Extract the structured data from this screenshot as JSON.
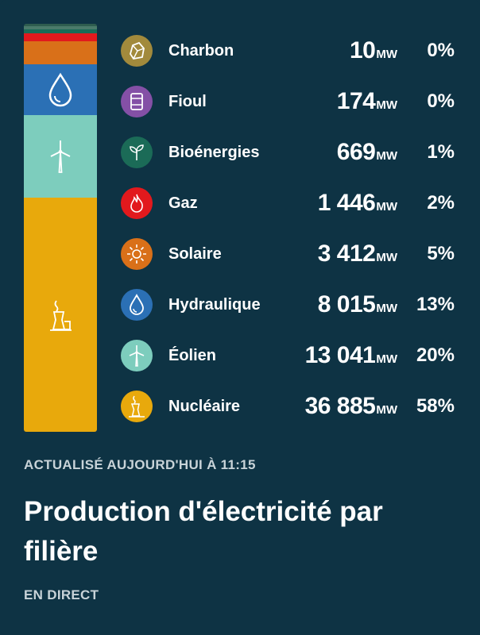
{
  "sources": [
    {
      "name": "Charbon",
      "value": "10",
      "unit": "MW",
      "pct": "0%",
      "share": 0.0002,
      "color": "#a28a3c",
      "icon": "coal-icon"
    },
    {
      "name": "Fioul",
      "value": "174",
      "unit": "MW",
      "pct": "0%",
      "share": 0.003,
      "color": "#8450a6",
      "icon": "oil-barrel-icon"
    },
    {
      "name": "Bioénergies",
      "value": "669",
      "unit": "MW",
      "pct": "1%",
      "share": 0.0105,
      "color": "#1b6b57",
      "icon": "sprout-icon"
    },
    {
      "name": "Gaz",
      "value": "1 446",
      "unit": "MW",
      "pct": "2%",
      "share": 0.0227,
      "color": "#e2191d",
      "icon": "flame-icon"
    },
    {
      "name": "Solaire",
      "value": "3 412",
      "unit": "MW",
      "pct": "5%",
      "share": 0.0536,
      "color": "#d97019",
      "icon": "sun-icon"
    },
    {
      "name": "Hydraulique",
      "value": "8 015",
      "unit": "MW",
      "pct": "13%",
      "share": 0.1259,
      "color": "#2b70b5",
      "icon": "water-drop-icon"
    },
    {
      "name": "Éolien",
      "value": "13 041",
      "unit": "MW",
      "pct": "20%",
      "share": 0.2049,
      "color": "#7dcdbd",
      "icon": "wind-turbine-icon"
    },
    {
      "name": "Nucléaire",
      "value": "36 885",
      "unit": "MW",
      "pct": "58%",
      "share": 0.5793,
      "color": "#e8a90c",
      "icon": "nuclear-plant-icon"
    }
  ],
  "updated": "ACTUALISÉ AUJOURD'HUI À 11:15",
  "title": "Production d'électricité par filière",
  "live": "EN DIRECT"
}
